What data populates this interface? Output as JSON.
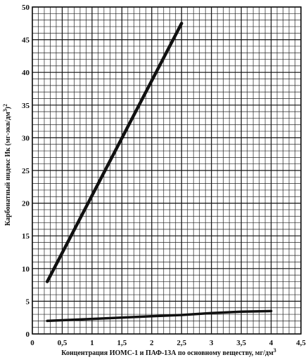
{
  "chart_data": {
    "type": "line",
    "xlabel": "Концентрация ИОМС-1 и ПАФ-13А  по основному веществу, мг/дм",
    "xlabel_sup": "3",
    "ylabel": "Карбонатный индекс Ик (мг-экв/дм",
    "ylabel_sup": "3",
    "ylabel_end": ")",
    "ylabel_sup2": "2",
    "xlim": [
      0,
      4.5
    ],
    "ylim": [
      0,
      50
    ],
    "x_ticks": [
      {
        "value": 0,
        "label": "0"
      },
      {
        "value": 0.5,
        "label": "0,5"
      },
      {
        "value": 1,
        "label": "1"
      },
      {
        "value": 1.5,
        "label": "1,5"
      },
      {
        "value": 2,
        "label": "2"
      },
      {
        "value": 2.5,
        "label": "2,5"
      },
      {
        "value": 3,
        "label": "3"
      },
      {
        "value": 3.5,
        "label": "3,5"
      },
      {
        "value": 4,
        "label": "4"
      },
      {
        "value": 4.5,
        "label": "4,5"
      }
    ],
    "y_ticks": [
      {
        "value": 0,
        "label": "0"
      },
      {
        "value": 5,
        "label": "5"
      },
      {
        "value": 10,
        "label": "10"
      },
      {
        "value": 15,
        "label": "15"
      },
      {
        "value": 20,
        "label": "20"
      },
      {
        "value": 25,
        "label": "25"
      },
      {
        "value": 30,
        "label": "30"
      },
      {
        "value": 35,
        "label": "35"
      },
      {
        "value": 40,
        "label": "40"
      },
      {
        "value": 45,
        "label": "45"
      },
      {
        "value": 50,
        "label": "50"
      }
    ],
    "grid": true,
    "grid_minor_x_step": 0.1,
    "grid_minor_y_step": 1,
    "series": [
      {
        "color": "#111111",
        "x": [
          0.25,
          2.5
        ],
        "y": [
          8,
          47.5
        ]
      },
      {
        "color": "#111111",
        "x": [
          0.25,
          1,
          2,
          2.5,
          3,
          3.5,
          4
        ],
        "y": [
          2,
          2.3,
          2.7,
          2.9,
          3.2,
          3.4,
          3.5
        ]
      }
    ]
  }
}
